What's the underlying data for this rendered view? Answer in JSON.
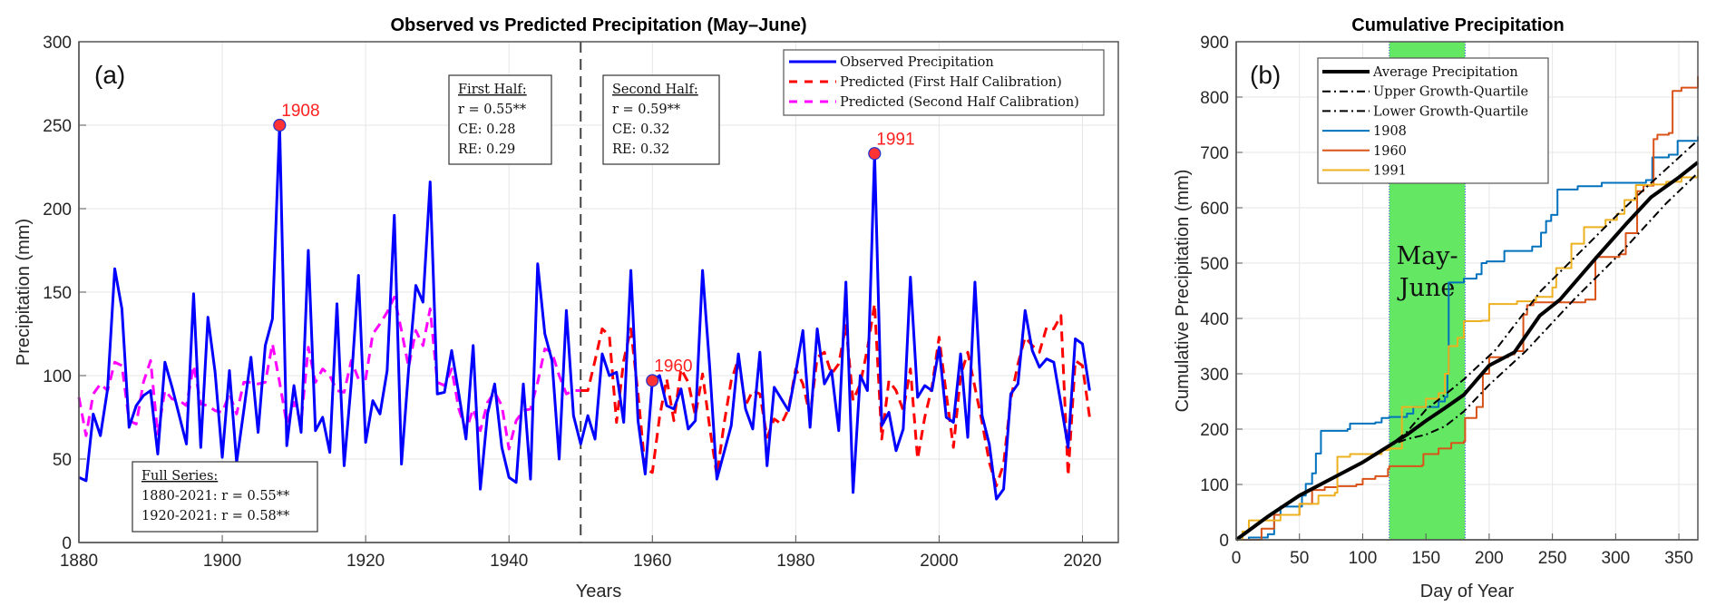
{
  "chart_data": [
    {
      "type": "line",
      "panel_label": "(a)",
      "title": "Observed vs Predicted Precipitation (May–June)",
      "xlabel": "Years",
      "ylabel": "Precipitation (mm)",
      "xlim": [
        1880,
        2025
      ],
      "ylim": [
        0,
        300
      ],
      "xticks": [
        1880,
        1900,
        1920,
        1940,
        1960,
        1980,
        2000,
        2020
      ],
      "yticks": [
        0,
        50,
        100,
        150,
        200,
        250,
        300
      ],
      "grid": true,
      "legend_position": "top-right",
      "split_year": 1950,
      "series": [
        {
          "name": "Observed Precipitation",
          "color": "#0000ff",
          "style": "solid",
          "x_start": 1880,
          "values": [
            39,
            37,
            77,
            64,
            92,
            164,
            140,
            69,
            82,
            88,
            91,
            53,
            108,
            93,
            76,
            59,
            149,
            57,
            135,
            102,
            51,
            103,
            48,
            79,
            111,
            66,
            118,
            134,
            250,
            58,
            94,
            66,
            175,
            67,
            75,
            54,
            143,
            46,
            96,
            160,
            60,
            85,
            77,
            103,
            196,
            47,
            104,
            154,
            144,
            216,
            89,
            90,
            115,
            89,
            62,
            118,
            32,
            77,
            95,
            57,
            39,
            36,
            95,
            38,
            167,
            125,
            109,
            50,
            139,
            76,
            59,
            76,
            62,
            113,
            100,
            102,
            72,
            163,
            73,
            41,
            97,
            100,
            82,
            80,
            92,
            68,
            73,
            163,
            105,
            38,
            54,
            70,
            113,
            80,
            68,
            114,
            46,
            93,
            86,
            79,
            102,
            127,
            69,
            128,
            95,
            103,
            67,
            156,
            30,
            100,
            91,
            233,
            70,
            78,
            55,
            68,
            159,
            87,
            94,
            91,
            117,
            75,
            72,
            113,
            63,
            156,
            76,
            59,
            26,
            32,
            89,
            95,
            139,
            115,
            105,
            110,
            108,
            83,
            57,
            122,
            119,
            91
          ]
        },
        {
          "name": "Predicted (First Half Calibration)",
          "color": "#ff0000",
          "style": "dashed",
          "x_start": 1950,
          "values": [
            91,
            91,
            109,
            128,
            124,
            72,
            109,
            128,
            89,
            44,
            42,
            75,
            98,
            73,
            104,
            96,
            76,
            101,
            69,
            40,
            71,
            97,
            110,
            82,
            91,
            89,
            63,
            74,
            71,
            80,
            104,
            95,
            76,
            111,
            114,
            101,
            107,
            130,
            85,
            95,
            116,
            143,
            62,
            97,
            91,
            79,
            104,
            50,
            75,
            93,
            123,
            89,
            57,
            100,
            114,
            93,
            72,
            48,
            34,
            47,
            86,
            107,
            123,
            118,
            114,
            129,
            128,
            136,
            40,
            109,
            106,
            75
          ]
        },
        {
          "name": "Predicted (Second Half Calibration)",
          "color": "#ff00ff",
          "style": "dashed",
          "x_start": 1880,
          "values": [
            87,
            64,
            89,
            95,
            91,
            108,
            106,
            73,
            71,
            96,
            109,
            65,
            91,
            86,
            85,
            82,
            106,
            83,
            82,
            79,
            78,
            89,
            77,
            96,
            96,
            95,
            96,
            119,
            96,
            71,
            84,
            72,
            117,
            96,
            104,
            100,
            91,
            90,
            109,
            98,
            98,
            125,
            131,
            138,
            147,
            127,
            105,
            127,
            118,
            140,
            96,
            94,
            104,
            80,
            67,
            80,
            67,
            84,
            90,
            82,
            56,
            73,
            79,
            80,
            96,
            116,
            114,
            100,
            89,
            91,
            91
          ]
        }
      ],
      "highlights": [
        {
          "year": 1908,
          "label": "1908",
          "value": 250
        },
        {
          "year": 1960,
          "label": "1960",
          "value": 97
        },
        {
          "year": 1991,
          "label": "1991",
          "value": 233
        }
      ],
      "annotations": {
        "first_half": {
          "heading": "First Half:",
          "lines": [
            "r = 0.55**",
            "CE: 0.28",
            "RE: 0.29"
          ]
        },
        "second_half": {
          "heading": "Second Half:",
          "lines": [
            "r = 0.59**",
            "CE: 0.32",
            "RE: 0.32"
          ]
        },
        "full_series": {
          "heading": "Full Series:",
          "lines": [
            "1880-2021: r = 0.55**",
            "1920-2021: r = 0.58**"
          ]
        }
      }
    },
    {
      "type": "line",
      "panel_label": "(b)",
      "title": "Cumulative Precipitation",
      "xlabel": "Day of Year",
      "ylabel": "Cumulative Precipitation (mm)",
      "xlim": [
        0,
        365
      ],
      "ylim": [
        0,
        900
      ],
      "xticks": [
        0,
        50,
        100,
        150,
        200,
        250,
        300,
        350
      ],
      "yticks": [
        0,
        100,
        200,
        300,
        400,
        500,
        600,
        700,
        800,
        900
      ],
      "grid": true,
      "legend_position": "top-left",
      "shaded_band": {
        "label_line1": "May-",
        "label_line2": "June",
        "x_range": [
          121,
          181
        ],
        "color": "#64e864"
      },
      "series": [
        {
          "name": "Average Precipitation",
          "color": "#000000",
          "style": "solid-thick",
          "points": [
            [
              0,
              0
            ],
            [
              25,
              42
            ],
            [
              50,
              80
            ],
            [
              75,
              110
            ],
            [
              100,
              140
            ],
            [
              121,
              170
            ],
            [
              135,
              190
            ],
            [
              150,
              215
            ],
            [
              165,
              238
            ],
            [
              180,
              262
            ],
            [
              200,
              315
            ],
            [
              220,
              339
            ],
            [
              240,
              405
            ],
            [
              256,
              434
            ],
            [
              284,
              508
            ],
            [
              308,
              570
            ],
            [
              328,
              619
            ],
            [
              350,
              655
            ],
            [
              365,
              682
            ]
          ]
        },
        {
          "name": "Upper Growth-Quartile",
          "color": "#000000",
          "style": "dash-dot",
          "points": [
            [
              0,
              0
            ],
            [
              50,
              80
            ],
            [
              100,
              140
            ],
            [
              121,
              170
            ],
            [
              135,
              195
            ],
            [
              150,
              235
            ],
            [
              165,
              262
            ],
            [
              180,
              290
            ],
            [
              205,
              343
            ],
            [
              241,
              450
            ],
            [
              279,
              536
            ],
            [
              303,
              591
            ],
            [
              328,
              645
            ],
            [
              365,
              722
            ]
          ]
        },
        {
          "name": "Lower Growth-Quartile",
          "color": "#000000",
          "style": "dash-dot",
          "points": [
            [
              0,
              0
            ],
            [
              50,
              80
            ],
            [
              100,
              140
            ],
            [
              121,
              170
            ],
            [
              135,
              182
            ],
            [
              150,
              190
            ],
            [
              165,
              205
            ],
            [
              180,
              232
            ],
            [
              200,
              280
            ],
            [
              229,
              341
            ],
            [
              267,
              434
            ],
            [
              303,
              516
            ],
            [
              340,
              608
            ],
            [
              365,
              663
            ]
          ]
        },
        {
          "name": "1908",
          "color": "#0072bd",
          "style": "solid",
          "points": [
            [
              0,
              0
            ],
            [
              10,
              4
            ],
            [
              25,
              10
            ],
            [
              30,
              45
            ],
            [
              35,
              60
            ],
            [
              52,
              80
            ],
            [
              55,
              101
            ],
            [
              60,
              120
            ],
            [
              63,
              156
            ],
            [
              67,
              197
            ],
            [
              88,
              200
            ],
            [
              90,
              210
            ],
            [
              110,
              212
            ],
            [
              115,
              220
            ],
            [
              121,
              222
            ],
            [
              135,
              228
            ],
            [
              140,
              240
            ],
            [
              160,
              250
            ],
            [
              165,
              258
            ],
            [
              167,
              300
            ],
            [
              168,
              465
            ],
            [
              180,
              472
            ],
            [
              190,
              480
            ],
            [
              194,
              500
            ],
            [
              198,
              503
            ],
            [
              212,
              522
            ],
            [
              234,
              530
            ],
            [
              241,
              555
            ],
            [
              245,
              576
            ],
            [
              249,
              587
            ],
            [
              254,
              633
            ],
            [
              270,
              639
            ],
            [
              289,
              645
            ],
            [
              324,
              650
            ],
            [
              329,
              691
            ],
            [
              342,
              696
            ],
            [
              349,
              721
            ],
            [
              365,
              729
            ]
          ]
        },
        {
          "name": "1960",
          "color": "#d95319",
          "style": "solid",
          "points": [
            [
              0,
              0
            ],
            [
              20,
              20
            ],
            [
              30,
              45
            ],
            [
              50,
              65
            ],
            [
              60,
              90
            ],
            [
              70,
              95
            ],
            [
              80,
              97
            ],
            [
              95,
              100
            ],
            [
              100,
              110
            ],
            [
              110,
              115
            ],
            [
              120,
              128
            ],
            [
              121,
              133
            ],
            [
              147,
              135
            ],
            [
              148,
              155
            ],
            [
              160,
              165
            ],
            [
              170,
              175
            ],
            [
              180,
              178
            ],
            [
              181,
              220
            ],
            [
              190,
              240
            ],
            [
              195,
              300
            ],
            [
              200,
              330
            ],
            [
              215,
              335
            ],
            [
              220,
              341
            ],
            [
              227,
              407
            ],
            [
              230,
              424
            ],
            [
              235,
              429
            ],
            [
              276,
              434
            ],
            [
              284,
              511
            ],
            [
              303,
              516
            ],
            [
              308,
              554
            ],
            [
              317,
              630
            ],
            [
              322,
              640
            ],
            [
              330,
              724
            ],
            [
              333,
              732
            ],
            [
              342,
              735
            ],
            [
              345,
              811
            ],
            [
              352,
              817
            ],
            [
              365,
              838
            ]
          ]
        },
        {
          "name": "1991",
          "color": "#edb120",
          "style": "solid",
          "points": [
            [
              0,
              0
            ],
            [
              5,
              15
            ],
            [
              10,
              35
            ],
            [
              25,
              35
            ],
            [
              35,
              45
            ],
            [
              50,
              65
            ],
            [
              65,
              80
            ],
            [
              78,
              85
            ],
            [
              80,
              150
            ],
            [
              90,
              155
            ],
            [
              115,
              162
            ],
            [
              121,
              165
            ],
            [
              130,
              165
            ],
            [
              131,
              240
            ],
            [
              150,
              255
            ],
            [
              160,
              265
            ],
            [
              165,
              300
            ],
            [
              168,
              350
            ],
            [
              175,
              365
            ],
            [
              180,
              395
            ],
            [
              194,
              396
            ],
            [
              200,
              426
            ],
            [
              222,
              431
            ],
            [
              237,
              439
            ],
            [
              250,
              456
            ],
            [
              253,
              491
            ],
            [
              265,
              535
            ],
            [
              275,
              565
            ],
            [
              292,
              578
            ],
            [
              301,
              589
            ],
            [
              307,
              614
            ],
            [
              316,
              641
            ],
            [
              328,
              642
            ],
            [
              340,
              647
            ],
            [
              352,
              655
            ],
            [
              365,
              671
            ]
          ]
        }
      ]
    }
  ]
}
